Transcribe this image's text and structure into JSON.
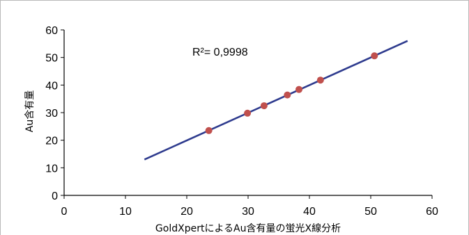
{
  "chart_data": {
    "type": "scatter",
    "title": "",
    "xlabel": "GoldXpertによるAu含有量の蛍光X線分析",
    "ylabel": "Au含有量",
    "xlim": [
      0,
      60
    ],
    "ylim": [
      0,
      60
    ],
    "xticks": [
      "0",
      "10",
      "20",
      "30",
      "40",
      "50",
      "60"
    ],
    "yticks": [
      "0",
      "10",
      "20",
      "30",
      "40",
      "50",
      "60"
    ],
    "grid": false,
    "legend": "none",
    "annotation": "R²= 0,9998",
    "series": [
      {
        "marker_color": "#c0504d",
        "x": [
          23.6,
          29.9,
          32.6,
          36.4,
          38.3,
          41.8,
          50.6
        ],
        "y": [
          23.5,
          29.8,
          32.5,
          36.4,
          38.4,
          41.8,
          50.6
        ]
      }
    ],
    "trendline": {
      "color": "#2e3b8e",
      "x": [
        13.1,
        56.0
      ],
      "y": [
        13.0,
        56.0
      ]
    }
  }
}
